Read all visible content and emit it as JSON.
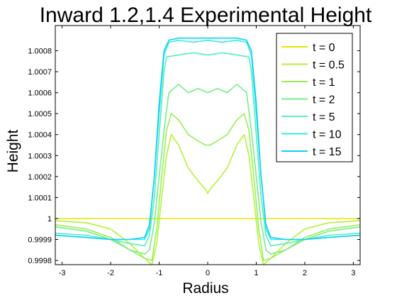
{
  "chart_data": {
    "type": "line",
    "title": "Inward 1.2,1.4 Experimental Height",
    "xlabel": "Radius",
    "ylabel": "Height",
    "xlim": [
      -3.14,
      3.14
    ],
    "ylim": [
      0.99978,
      1.00092
    ],
    "x_ticks": [
      -3,
      -2,
      -1,
      0,
      1,
      2,
      3
    ],
    "x_tick_labels": [
      "-3",
      "-2",
      "-1",
      "0",
      "1",
      "2",
      "3"
    ],
    "y_ticks": [
      0.9998,
      0.9999,
      1.0,
      1.0001,
      1.0002,
      1.0003,
      1.0004,
      1.0005,
      1.0006,
      1.0007,
      1.0008
    ],
    "y_tick_labels": [
      "0.9998",
      "0.9999",
      "1",
      "1.0001",
      "1.0002",
      "1.0003",
      "1.0004",
      "1.0005",
      "1.0006",
      "1.0007",
      "1.0008"
    ],
    "grid": false,
    "legend_position": "top-right",
    "series": [
      {
        "name": "t = 0",
        "color": "#e6e600",
        "x": [
          -3.14,
          3.14
        ],
        "y": [
          1.0,
          1.0
        ]
      },
      {
        "name": "t = 0.5",
        "color": "#b3f23a",
        "x": [
          -3.14,
          -2.5,
          -2.0,
          -1.6,
          -1.3,
          -1.15,
          -1.05,
          -0.95,
          -0.85,
          -0.75,
          -0.6,
          -0.4,
          -0.2,
          -0.05,
          0.0,
          0.05,
          0.2,
          0.4,
          0.6,
          0.75,
          0.85,
          0.95,
          1.05,
          1.15,
          1.3,
          1.6,
          2.0,
          2.5,
          3.14
        ],
        "y": [
          0.99999,
          0.99998,
          0.99995,
          0.99988,
          0.99981,
          0.99978,
          0.99988,
          1.0001,
          1.0003,
          1.0004,
          1.00035,
          1.00024,
          1.00018,
          1.00014,
          1.00012,
          1.00014,
          1.00018,
          1.00024,
          1.00035,
          1.0004,
          1.0003,
          1.0001,
          0.99988,
          0.99978,
          0.99981,
          0.99988,
          0.99995,
          0.99998,
          0.99999
        ]
      },
      {
        "name": "t = 1",
        "color": "#99ee55",
        "x": [
          -3.14,
          -2.5,
          -2.0,
          -1.6,
          -1.3,
          -1.15,
          -1.05,
          -0.95,
          -0.85,
          -0.75,
          -0.6,
          -0.4,
          -0.2,
          -0.05,
          0.0,
          0.05,
          0.2,
          0.4,
          0.6,
          0.75,
          0.85,
          0.95,
          1.05,
          1.15,
          1.3,
          1.6,
          2.0,
          2.5,
          3.14
        ],
        "y": [
          0.99997,
          0.99995,
          0.99991,
          0.99985,
          0.99981,
          0.9998,
          0.99995,
          1.0002,
          1.00042,
          1.0005,
          1.00047,
          1.0004,
          1.00037,
          1.00035,
          1.00035,
          1.00035,
          1.00037,
          1.0004,
          1.00047,
          1.0005,
          1.00042,
          1.0002,
          0.99995,
          0.9998,
          0.99981,
          0.99985,
          0.99991,
          0.99995,
          0.99997
        ]
      },
      {
        "name": "t = 2",
        "color": "#77ee88",
        "x": [
          -3.14,
          -2.5,
          -2.0,
          -1.6,
          -1.3,
          -1.2,
          -1.1,
          -1.0,
          -0.9,
          -0.8,
          -0.6,
          -0.4,
          -0.2,
          0.0,
          0.2,
          0.4,
          0.6,
          0.8,
          0.9,
          1.0,
          1.1,
          1.2,
          1.3,
          1.6,
          2.0,
          2.5,
          3.14
        ],
        "y": [
          0.99996,
          0.99994,
          0.9999,
          0.99985,
          0.99983,
          0.99985,
          0.99998,
          1.0002,
          1.00042,
          1.0006,
          1.00064,
          1.0006,
          1.00062,
          1.0006,
          1.00062,
          1.0006,
          1.00064,
          1.0006,
          1.00042,
          1.0002,
          0.99998,
          0.99985,
          0.99983,
          0.99985,
          0.9999,
          0.99994,
          0.99996
        ]
      },
      {
        "name": "t = 5",
        "color": "#55eebb",
        "x": [
          -3.14,
          -2.5,
          -2.0,
          -1.6,
          -1.3,
          -1.2,
          -1.1,
          -1.0,
          -0.9,
          -0.85,
          -0.6,
          -0.3,
          0.0,
          0.3,
          0.6,
          0.85,
          0.9,
          1.0,
          1.1,
          1.2,
          1.3,
          1.6,
          2.0,
          2.5,
          3.14
        ],
        "y": [
          0.99993,
          0.99992,
          0.9999,
          0.99988,
          0.99987,
          0.99992,
          1.0001,
          1.0004,
          1.0007,
          1.00077,
          1.00078,
          1.00079,
          1.00078,
          1.00079,
          1.00078,
          1.00077,
          1.0007,
          1.0004,
          1.0001,
          0.99992,
          0.99987,
          0.99988,
          0.9999,
          0.99992,
          0.99993
        ]
      },
      {
        "name": "t = 10",
        "color": "#33eedd",
        "x": [
          -3.14,
          -2.5,
          -2.0,
          -1.6,
          -1.3,
          -1.2,
          -1.1,
          -1.0,
          -0.9,
          -0.8,
          -0.6,
          -0.3,
          0.0,
          0.3,
          0.6,
          0.8,
          0.9,
          1.0,
          1.1,
          1.2,
          1.3,
          1.6,
          2.0,
          2.5,
          3.14
        ],
        "y": [
          0.99992,
          0.99991,
          0.9999,
          0.9999,
          0.9999,
          0.99995,
          1.0002,
          1.0005,
          1.00078,
          1.00084,
          1.00085,
          1.00084,
          1.00085,
          1.00084,
          1.00085,
          1.00084,
          1.00078,
          1.0005,
          1.0002,
          0.99995,
          0.9999,
          0.9999,
          0.9999,
          0.99991,
          0.99992
        ]
      },
      {
        "name": "t = 15",
        "color": "#11ccff",
        "x": [
          -3.14,
          -2.5,
          -2.0,
          -1.6,
          -1.3,
          -1.2,
          -1.1,
          -1.0,
          -0.9,
          -0.8,
          -0.6,
          -0.3,
          0.0,
          0.3,
          0.6,
          0.8,
          0.9,
          1.0,
          1.1,
          1.2,
          1.3,
          1.6,
          2.0,
          2.5,
          3.14
        ],
        "y": [
          0.99992,
          0.99991,
          0.9999,
          0.9999,
          0.99991,
          0.99997,
          1.0002,
          1.00055,
          1.0008,
          1.00085,
          1.00086,
          1.00086,
          1.00086,
          1.00086,
          1.00086,
          1.00085,
          1.0008,
          1.00055,
          1.0002,
          0.99997,
          0.99991,
          0.9999,
          0.9999,
          0.99991,
          0.99992
        ]
      }
    ]
  }
}
